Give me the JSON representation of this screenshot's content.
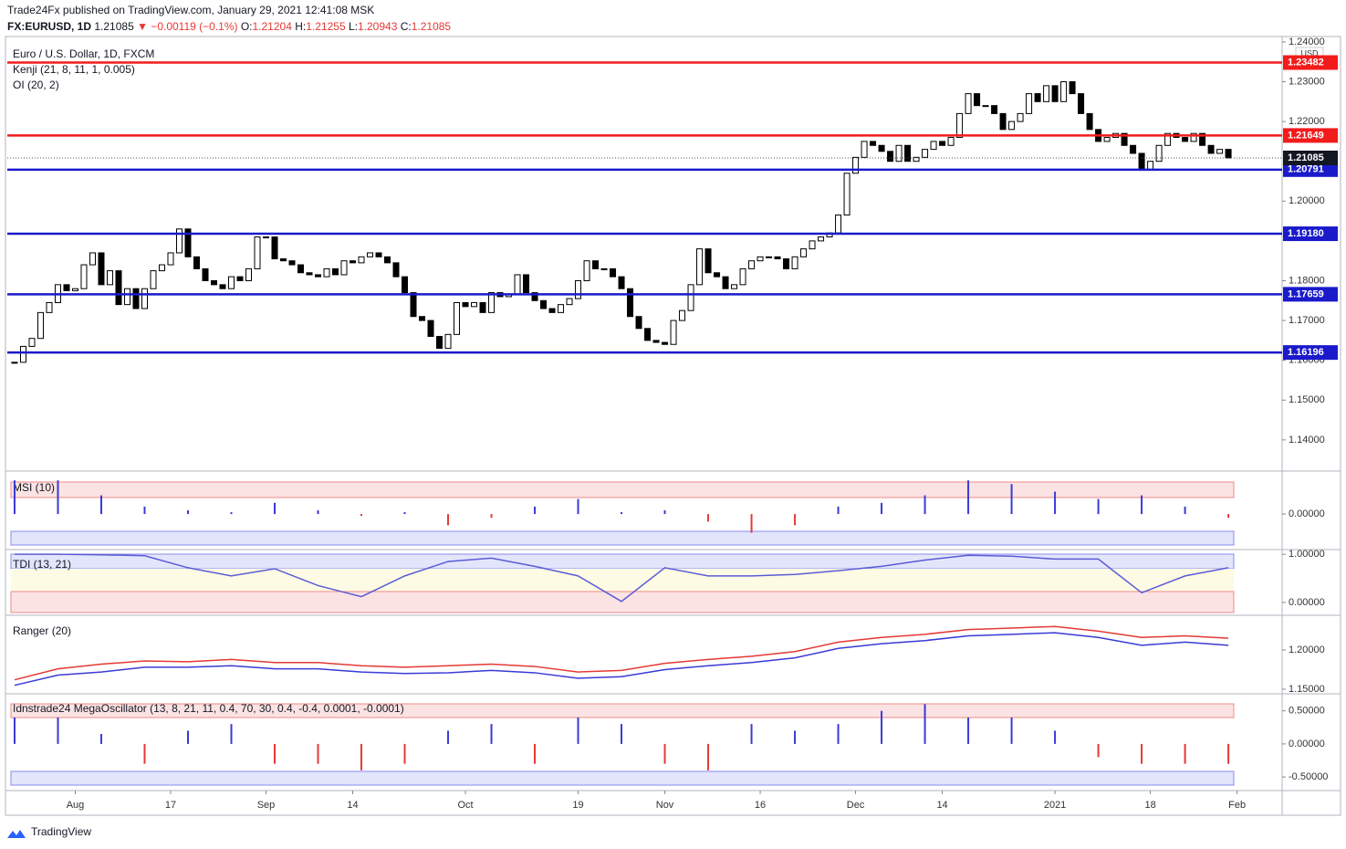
{
  "header": {
    "publisher": "Trade24Fx published on TradingView.com, January 29, 2021 12:41:08 MSK",
    "symbol": "FX:EURUSD, 1D",
    "price": "1.21085",
    "change": "▼ −0.00119 (−0.1%)",
    "ohlc": [
      {
        "key": "O:",
        "value": "1.21204"
      },
      {
        "key": "H:",
        "value": "1.21255"
      },
      {
        "key": "L:",
        "value": "1.20943"
      },
      {
        "key": "C:",
        "value": "1.21085"
      }
    ]
  },
  "footer": {
    "brand": "TradingView"
  },
  "chart_data": [
    {
      "type": "candlestick",
      "title": "Euro / U.S. Dollar, 1D, FXCM",
      "indicators": [
        "Kenji (21, 8, 11, 1, 0.005)",
        "OI (20, 2)"
      ],
      "currency": "USD",
      "up_color": "#ffffff",
      "down_color": "#000000",
      "close": [
        1.1595,
        1.1635,
        1.1655,
        1.172,
        1.1745,
        1.179,
        1.1775,
        1.178,
        1.184,
        1.187,
        1.179,
        1.1825,
        1.174,
        1.178,
        1.173,
        1.178,
        1.1825,
        1.184,
        1.187,
        1.193,
        1.186,
        1.183,
        1.18,
        1.179,
        1.178,
        1.181,
        1.18,
        1.183,
        1.191,
        1.191,
        1.1855,
        1.185,
        1.184,
        1.182,
        1.1815,
        1.181,
        1.183,
        1.1815,
        1.185,
        1.1845,
        1.186,
        1.187,
        1.186,
        1.1845,
        1.181,
        1.177,
        1.171,
        1.17,
        1.166,
        1.163,
        1.1665,
        1.1745,
        1.1735,
        1.1745,
        1.172,
        1.177,
        1.176,
        1.1765,
        1.1815,
        1.177,
        1.175,
        1.173,
        1.172,
        1.174,
        1.1755,
        1.18,
        1.185,
        1.183,
        1.183,
        1.181,
        1.178,
        1.171,
        1.168,
        1.165,
        1.1645,
        1.164,
        1.17,
        1.1725,
        1.179,
        1.188,
        1.182,
        1.181,
        1.178,
        1.179,
        1.183,
        1.185,
        1.186,
        1.186,
        1.1855,
        1.183,
        1.186,
        1.188,
        1.19,
        1.191,
        1.192,
        1.1965,
        1.207,
        1.211,
        1.215,
        1.214,
        1.2125,
        1.21,
        1.214,
        1.21,
        1.211,
        1.213,
        1.215,
        1.214,
        1.216,
        1.222,
        1.227,
        1.224,
        1.224,
        1.222,
        1.218,
        1.22,
        1.222,
        1.227,
        1.225,
        1.229,
        1.225,
        1.23,
        1.227,
        1.222,
        1.218,
        1.215,
        1.216,
        1.217,
        1.214,
        1.212,
        1.208,
        1.21,
        1.214,
        1.217,
        1.216,
        1.215,
        1.217,
        1.214,
        1.212,
        1.213,
        1.21085
      ],
      "xlim": [
        -0.84,
        146.2
      ],
      "xticks": [
        {
          "value": 7,
          "label": "Aug"
        },
        {
          "value": 18,
          "label": "17"
        },
        {
          "value": 29,
          "label": "Sep"
        },
        {
          "value": 39,
          "label": "14"
        },
        {
          "value": 52,
          "label": "Oct"
        },
        {
          "value": 65,
          "label": "19"
        },
        {
          "value": 75,
          "label": "Nov"
        },
        {
          "value": 86,
          "label": "16"
        },
        {
          "value": 97,
          "label": "Dec"
        },
        {
          "value": 107,
          "label": "14"
        },
        {
          "value": 120,
          "label": "2021"
        },
        {
          "value": 131,
          "label": "18"
        },
        {
          "value": 141,
          "label": "Feb"
        }
      ],
      "ylim": [
        1.1324,
        1.2409
      ],
      "yticks": [
        {
          "value": 1.24,
          "label": "1.24000"
        },
        {
          "value": 1.23,
          "label": "1.23000"
        },
        {
          "value": 1.22,
          "label": "1.22000"
        },
        {
          "value": 1.2,
          "label": "1.20000"
        },
        {
          "value": 1.18,
          "label": "1.18000"
        },
        {
          "value": 1.17,
          "label": "1.17000"
        },
        {
          "value": 1.16,
          "label": "1.16000"
        },
        {
          "value": 1.15,
          "label": "1.15000"
        },
        {
          "value": 1.14,
          "label": "1.14000"
        }
      ],
      "levels": [
        {
          "price": 1.23482,
          "color": "#f21b1b"
        },
        {
          "price": 1.21649,
          "color": "#f21b1b"
        },
        {
          "price": 1.20791,
          "color": "#1a1acb"
        },
        {
          "price": {
            "value": 1.1918,
            "label": "1.19180"
          },
          "color": "#1a1acb"
        },
        {
          "price": 1.17659,
          "color": "#1a1acb"
        },
        {
          "price": 1.16196,
          "color": "#1a1acb"
        }
      ],
      "last_price": 1.21085
    },
    {
      "type": "bar",
      "title": "MSI (10)",
      "pos_color": "#3a3ad6",
      "neg_color": "#e53935",
      "x": [
        0,
        5,
        10,
        15,
        20,
        25,
        30,
        35,
        40,
        45,
        50,
        55,
        60,
        65,
        70,
        75,
        80,
        85,
        90,
        95,
        100,
        105,
        110,
        115,
        120,
        125,
        130,
        135,
        140
      ],
      "values": [
        0.9,
        0.9,
        0.5,
        0.2,
        0.1,
        0.05,
        0.3,
        0.1,
        -0.05,
        0.05,
        -0.3,
        -0.1,
        0.2,
        0.4,
        0.05,
        0.1,
        -0.2,
        -0.5,
        -0.3,
        0.2,
        0.3,
        0.5,
        0.9,
        0.8,
        0.6,
        0.4,
        0.5,
        0.2,
        -0.1
      ],
      "ylim": [
        -0.9,
        1.1
      ],
      "yticks": [
        {
          "value": 0,
          "label": "0.00000"
        }
      ]
    },
    {
      "type": "line",
      "title": "TDI (13, 21)",
      "x": [
        0,
        5,
        10,
        15,
        20,
        25,
        30,
        35,
        40,
        45,
        50,
        55,
        60,
        65,
        70,
        75,
        80,
        85,
        90,
        95,
        100,
        105,
        110,
        115,
        120,
        125,
        130,
        135,
        140
      ],
      "series": [
        {
          "color": "#5b5bd6",
          "values": [
            1.0,
            1.0,
            0.99,
            0.97,
            0.72,
            0.55,
            0.7,
            0.35,
            0.12,
            0.55,
            0.85,
            0.92,
            0.75,
            0.55,
            0.02,
            0.72,
            0.55,
            0.55,
            0.58,
            0.66,
            0.75,
            0.88,
            0.98,
            0.96,
            0.9,
            0.9,
            0.2,
            0.55,
            0.72
          ]
        }
      ],
      "ylim": [
        -0.23,
        1.06
      ],
      "yticks": [
        {
          "value": 1,
          "label": "1.00000"
        },
        {
          "value": 0,
          "label": "0.00000"
        }
      ]
    },
    {
      "type": "line",
      "title": "Ranger (20)",
      "x": [
        0,
        5,
        10,
        15,
        20,
        25,
        30,
        35,
        40,
        45,
        50,
        55,
        60,
        65,
        70,
        75,
        80,
        85,
        90,
        95,
        100,
        105,
        110,
        115,
        120,
        125,
        130,
        135,
        140
      ],
      "series": [
        {
          "color": "#e53935",
          "values": [
            1.162,
            1.176,
            1.182,
            1.186,
            1.185,
            1.188,
            1.184,
            1.184,
            1.18,
            1.178,
            1.18,
            1.182,
            1.179,
            1.172,
            1.174,
            1.183,
            1.188,
            1.192,
            1.198,
            1.21,
            1.216,
            1.22,
            1.226,
            1.228,
            1.23,
            1.224,
            1.216,
            1.218,
            1.215
          ]
        },
        {
          "color": "#3a3ad6",
          "values": [
            1.155,
            1.168,
            1.172,
            1.178,
            1.178,
            1.18,
            1.176,
            1.176,
            1.172,
            1.17,
            1.171,
            1.174,
            1.171,
            1.164,
            1.166,
            1.175,
            1.18,
            1.184,
            1.19,
            1.202,
            1.208,
            1.212,
            1.218,
            1.22,
            1.222,
            1.216,
            1.206,
            1.21,
            1.206
          ]
        }
      ],
      "ylim": [
        1.1465,
        1.2419
      ],
      "yticks": [
        {
          "value": 1.2,
          "label": "1.20000"
        },
        {
          "value": 1.15,
          "label": "1.15000"
        }
      ]
    },
    {
      "type": "bar",
      "title": "Idnstrade24 MegaOscillator (13, 8, 21, 11, 0.4, 70, 30, 0.4, -0.4, 0.0001, -0.0001)",
      "pos_color": "#3a3ad6",
      "neg_color": "#e53935",
      "x": [
        0,
        5,
        10,
        15,
        20,
        25,
        30,
        35,
        40,
        45,
        50,
        55,
        60,
        65,
        70,
        75,
        80,
        85,
        90,
        95,
        100,
        105,
        110,
        115,
        120,
        125,
        130,
        135,
        140
      ],
      "values": [
        0.4,
        0.4,
        0.15,
        -0.3,
        0.2,
        0.3,
        -0.3,
        -0.3,
        -0.4,
        -0.3,
        0.2,
        0.3,
        -0.3,
        0.4,
        0.3,
        -0.3,
        -0.4,
        0.3,
        0.2,
        0.3,
        0.5,
        0.6,
        0.4,
        0.4,
        0.2,
        -0.2,
        -0.3,
        -0.3,
        -0.3
      ],
      "ylim": [
        -0.65,
        0.73
      ],
      "yticks": [
        {
          "value": 0.5,
          "label": "0.50000"
        },
        {
          "value": 0,
          "label": "0.00000"
        },
        {
          "value": -0.5,
          "label": "-0.50000"
        }
      ]
    }
  ]
}
